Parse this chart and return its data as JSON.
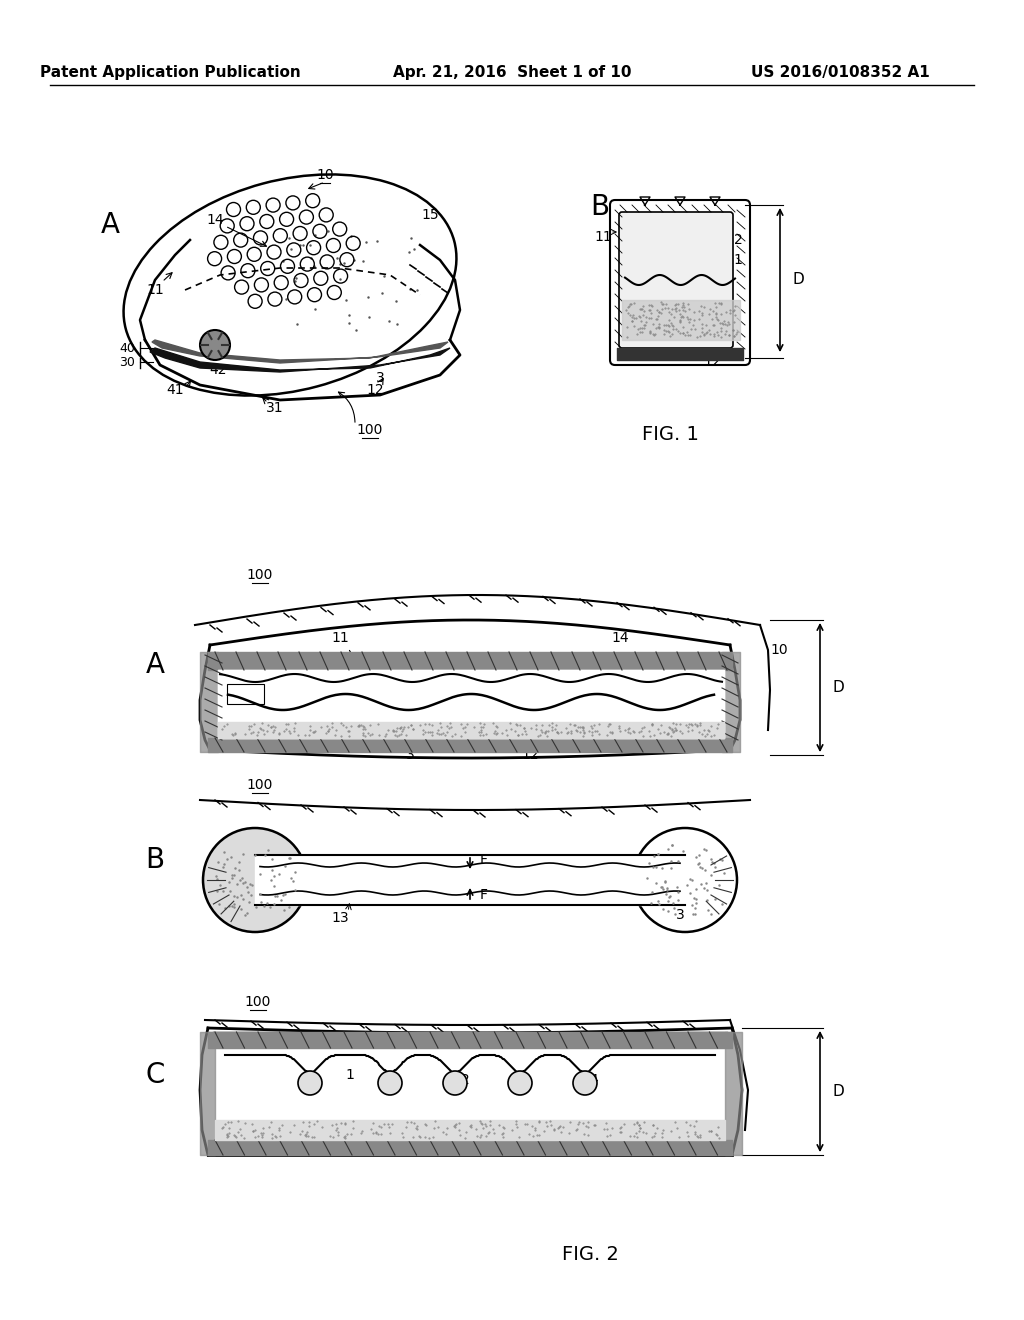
{
  "bg_color": "#ffffff",
  "header_left": "Patent Application Publication",
  "header_mid": "Apr. 21, 2016  Sheet 1 of 10",
  "header_right": "US 2016/0108352 A1",
  "fig1_label": "FIG. 1",
  "fig2_label": "FIG. 2",
  "title_color": "#000000",
  "line_color": "#000000",
  "text_color": "#000000"
}
